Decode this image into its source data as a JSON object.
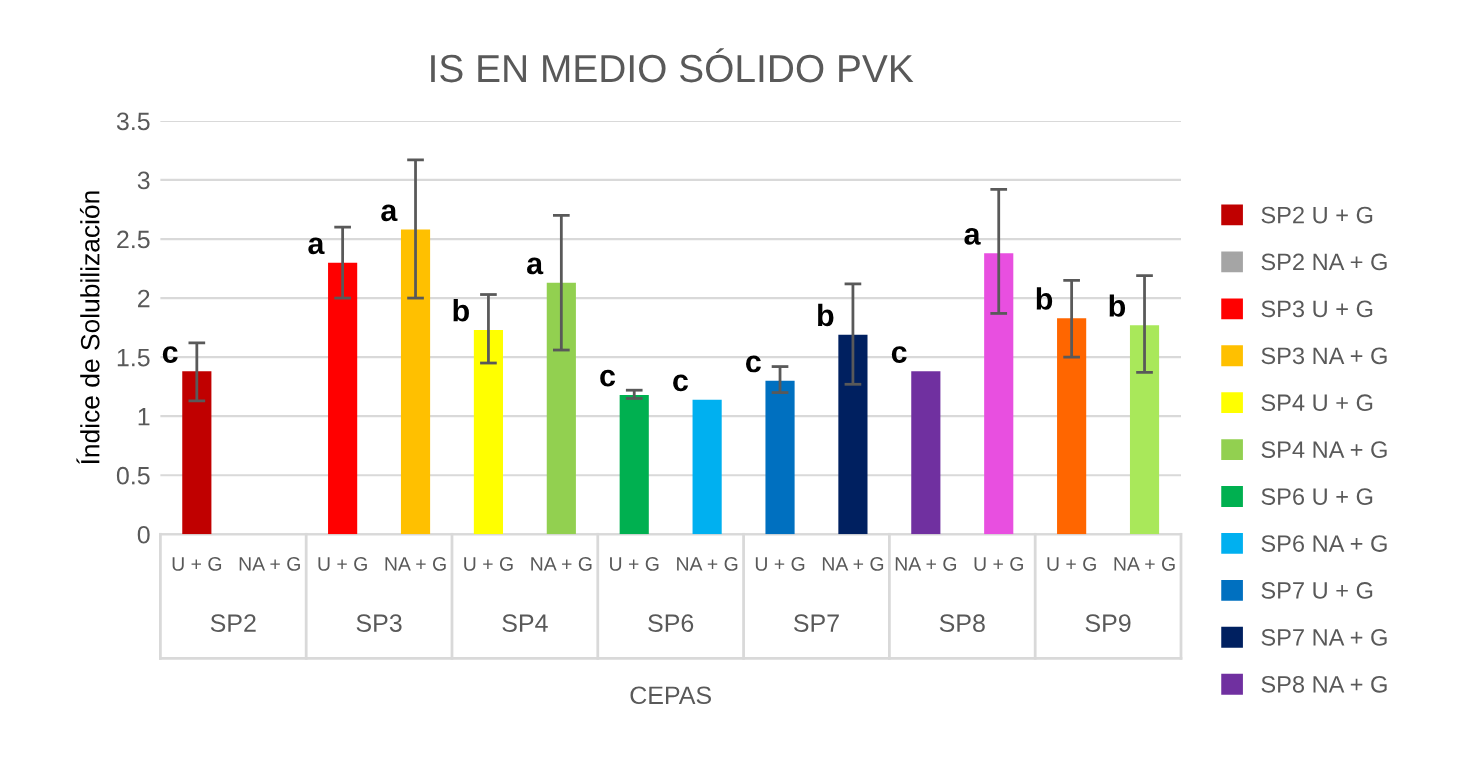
{
  "chart_data": {
    "type": "bar",
    "title": "IS EN MEDIO SÓLIDO PVK",
    "xlabel": "CEPAS",
    "ylabel": "Índice de Solubilización",
    "categories": [
      "U + G",
      "NA + G",
      "U + G",
      "NA + G",
      "U + G",
      "NA + G",
      "U + G",
      "NA + G",
      "U + G",
      "NA + G",
      "NA + G",
      "U + G",
      "U + G",
      "NA + G"
    ],
    "annotations": [
      "SP2",
      "SP3",
      "SP4",
      "SP6",
      "SP7",
      "SP8",
      "SP9"
    ],
    "ylim": [
      0,
      3.5
    ],
    "yticks": [
      0,
      0.5,
      1,
      1.5,
      2,
      2.5,
      3,
      3.5
    ],
    "grid": "y",
    "legend": "right",
    "series": [
      {
        "name": "SP2 U + G",
        "color": "#c00000",
        "values": [
          1.38,
          null,
          null,
          null,
          null,
          null,
          null,
          null,
          null,
          null,
          null,
          null,
          null,
          null
        ],
        "errors": [
          [
            1.13,
            1.62
          ],
          null,
          null,
          null,
          null,
          null,
          null,
          null,
          null,
          null,
          null,
          null,
          null,
          null
        ],
        "value_labels": [
          "c",
          null,
          null,
          null,
          null,
          null,
          null,
          null,
          null,
          null,
          null,
          null,
          null,
          null
        ]
      },
      {
        "name": "SP2 NA + G",
        "color": "#a5a5a5",
        "values": [
          null,
          0,
          null,
          null,
          null,
          null,
          null,
          null,
          null,
          null,
          null,
          null,
          null,
          null
        ]
      },
      {
        "name": "SP3 U + G",
        "color": "#ff0000",
        "values": [
          null,
          null,
          2.3,
          null,
          null,
          null,
          null,
          null,
          null,
          null,
          null,
          null,
          null,
          null
        ],
        "errors": [
          null,
          null,
          [
            2.0,
            2.6
          ],
          null,
          null,
          null,
          null,
          null,
          null,
          null,
          null,
          null,
          null,
          null
        ],
        "value_labels": [
          null,
          null,
          "a",
          null,
          null,
          null,
          null,
          null,
          null,
          null,
          null,
          null,
          null,
          null
        ]
      },
      {
        "name": "SP3 NA + G",
        "color": "#ffc000",
        "values": [
          null,
          null,
          null,
          2.58,
          null,
          null,
          null,
          null,
          null,
          null,
          null,
          null,
          null,
          null
        ],
        "errors": [
          null,
          null,
          null,
          [
            2.0,
            3.17
          ],
          null,
          null,
          null,
          null,
          null,
          null,
          null,
          null,
          null,
          null
        ],
        "value_labels": [
          null,
          null,
          null,
          "a",
          null,
          null,
          null,
          null,
          null,
          null,
          null,
          null,
          null,
          null
        ]
      },
      {
        "name": "SP4 U + G",
        "color": "#ffff00",
        "values": [
          null,
          null,
          null,
          null,
          1.73,
          null,
          null,
          null,
          null,
          null,
          null,
          null,
          null,
          null
        ],
        "errors": [
          null,
          null,
          null,
          null,
          [
            1.45,
            2.03
          ],
          null,
          null,
          null,
          null,
          null,
          null,
          null,
          null,
          null
        ],
        "value_labels": [
          null,
          null,
          null,
          null,
          "b",
          null,
          null,
          null,
          null,
          null,
          null,
          null,
          null,
          null
        ]
      },
      {
        "name": "SP4 NA + G",
        "color": "#92d050",
        "values": [
          null,
          null,
          null,
          null,
          null,
          2.13,
          null,
          null,
          null,
          null,
          null,
          null,
          null,
          null
        ],
        "errors": [
          null,
          null,
          null,
          null,
          null,
          [
            1.56,
            2.7
          ],
          null,
          null,
          null,
          null,
          null,
          null,
          null,
          null
        ],
        "value_labels": [
          null,
          null,
          null,
          null,
          null,
          "a",
          null,
          null,
          null,
          null,
          null,
          null,
          null,
          null
        ]
      },
      {
        "name": "SP6 U + G",
        "color": "#00b050",
        "values": [
          null,
          null,
          null,
          null,
          null,
          null,
          1.18,
          null,
          null,
          null,
          null,
          null,
          null,
          null
        ],
        "errors": [
          null,
          null,
          null,
          null,
          null,
          null,
          [
            1.15,
            1.22
          ],
          null,
          null,
          null,
          null,
          null,
          null,
          null
        ],
        "value_labels": [
          null,
          null,
          null,
          null,
          null,
          null,
          "c",
          null,
          null,
          null,
          null,
          null,
          null,
          null
        ]
      },
      {
        "name": "SP6 NA + G",
        "color": "#00b0f0",
        "values": [
          null,
          null,
          null,
          null,
          null,
          null,
          null,
          1.14,
          null,
          null,
          null,
          null,
          null,
          null
        ],
        "value_labels": [
          null,
          null,
          null,
          null,
          null,
          null,
          null,
          "c",
          null,
          null,
          null,
          null,
          null,
          null
        ]
      },
      {
        "name": "SP7 U + G",
        "color": "#0070c0",
        "values": [
          null,
          null,
          null,
          null,
          null,
          null,
          null,
          null,
          1.3,
          null,
          null,
          null,
          null,
          null
        ],
        "errors": [
          null,
          null,
          null,
          null,
          null,
          null,
          null,
          null,
          [
            1.2,
            1.42
          ],
          null,
          null,
          null,
          null,
          null
        ],
        "value_labels": [
          null,
          null,
          null,
          null,
          null,
          null,
          null,
          null,
          "c",
          null,
          null,
          null,
          null,
          null
        ]
      },
      {
        "name": "SP7 NA + G",
        "color": "#002060",
        "values": [
          null,
          null,
          null,
          null,
          null,
          null,
          null,
          null,
          null,
          1.69,
          null,
          null,
          null,
          null
        ],
        "errors": [
          null,
          null,
          null,
          null,
          null,
          null,
          null,
          null,
          null,
          [
            1.27,
            2.12
          ],
          null,
          null,
          null,
          null
        ],
        "value_labels": [
          null,
          null,
          null,
          null,
          null,
          null,
          null,
          null,
          null,
          "b",
          null,
          null,
          null,
          null
        ]
      },
      {
        "name": "SP8 NA + G",
        "color": "#7030a0",
        "values": [
          null,
          null,
          null,
          null,
          null,
          null,
          null,
          null,
          null,
          null,
          1.38,
          null,
          null,
          null
        ],
        "value_labels": [
          null,
          null,
          null,
          null,
          null,
          null,
          null,
          null,
          null,
          null,
          "c",
          null,
          null,
          null
        ]
      },
      {
        "color": "#e84fe0",
        "values": [
          null,
          null,
          null,
          null,
          null,
          null,
          null,
          null,
          null,
          null,
          null,
          2.38,
          null,
          null
        ],
        "errors": [
          null,
          null,
          null,
          null,
          null,
          null,
          null,
          null,
          null,
          null,
          null,
          [
            1.87,
            2.92
          ],
          null,
          null
        ],
        "value_labels": [
          null,
          null,
          null,
          null,
          null,
          null,
          null,
          null,
          null,
          null,
          null,
          "a",
          null,
          null
        ]
      },
      {
        "color": "#ff6600",
        "values": [
          null,
          null,
          null,
          null,
          null,
          null,
          null,
          null,
          null,
          null,
          null,
          null,
          1.83,
          null
        ],
        "errors": [
          null,
          null,
          null,
          null,
          null,
          null,
          null,
          null,
          null,
          null,
          null,
          null,
          [
            1.5,
            2.15
          ],
          null
        ],
        "value_labels": [
          null,
          null,
          null,
          null,
          null,
          null,
          null,
          null,
          null,
          null,
          null,
          null,
          "b",
          null
        ]
      },
      {
        "color": "#a9e85a",
        "values": [
          null,
          null,
          null,
          null,
          null,
          null,
          null,
          null,
          null,
          null,
          null,
          null,
          null,
          1.77
        ],
        "errors": [
          null,
          null,
          null,
          null,
          null,
          null,
          null,
          null,
          null,
          null,
          null,
          null,
          null,
          [
            1.37,
            2.19
          ]
        ],
        "value_labels": [
          null,
          null,
          null,
          null,
          null,
          null,
          null,
          null,
          null,
          null,
          null,
          null,
          null,
          "b"
        ]
      }
    ]
  }
}
